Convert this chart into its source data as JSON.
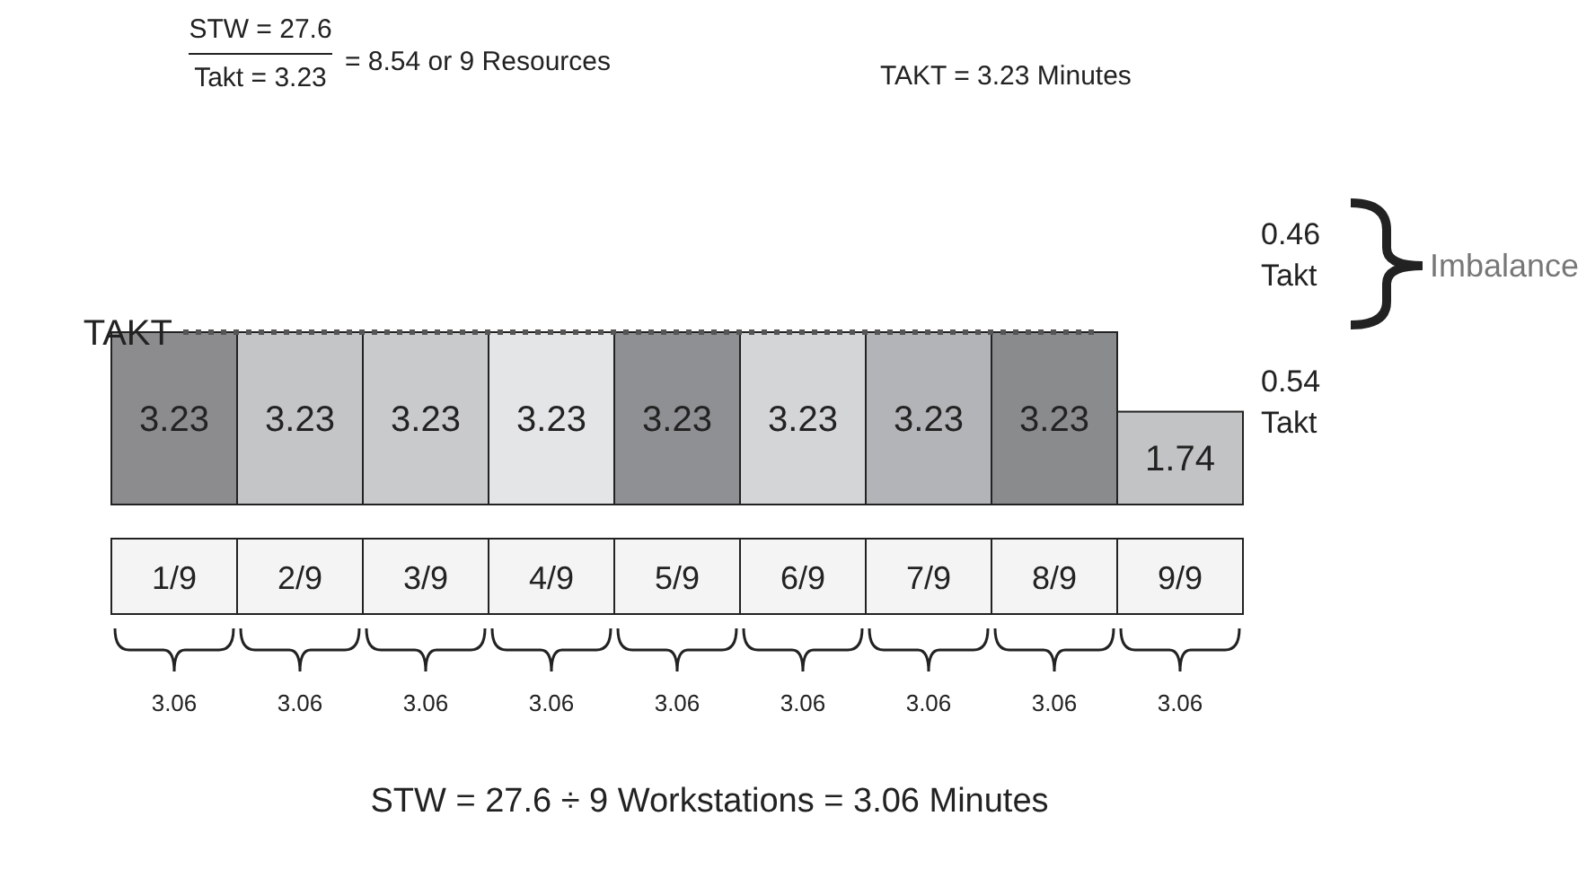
{
  "chart_data": {
    "type": "bar",
    "categories": [
      "1/9",
      "2/9",
      "3/9",
      "4/9",
      "5/9",
      "6/9",
      "7/9",
      "8/9",
      "9/9"
    ],
    "values": [
      3.23,
      3.23,
      3.23,
      3.23,
      3.23,
      3.23,
      3.23,
      3.23,
      1.74
    ],
    "colors": [
      "#8c8c8e",
      "#c4c5c7",
      "#c9cacc",
      "#e4e5e6",
      "#8f9093",
      "#d4d5d7",
      "#b3b4b7",
      "#8a8b8d",
      "#c2c3c5"
    ],
    "data_labels": true,
    "ref_lines": [
      {
        "axis": "y",
        "value": 3.23,
        "label": "TAKT",
        "color": "#555555",
        "line_style": "dotted"
      }
    ],
    "annotations": [
      "STW = 27.6",
      "Takt = 3.23",
      "= 8.54 or 9 Resources",
      "TAKT = 3.23 Minutes",
      "0.46 Takt",
      "Imbalance",
      "0.54 Takt",
      "3.06",
      "3.06",
      "3.06",
      "3.06",
      "3.06",
      "3.06",
      "3.06",
      "3.06",
      "3.06",
      "STW = 27.6 ÷ 9 Workstations = 3.06 Minutes"
    ]
  }
}
